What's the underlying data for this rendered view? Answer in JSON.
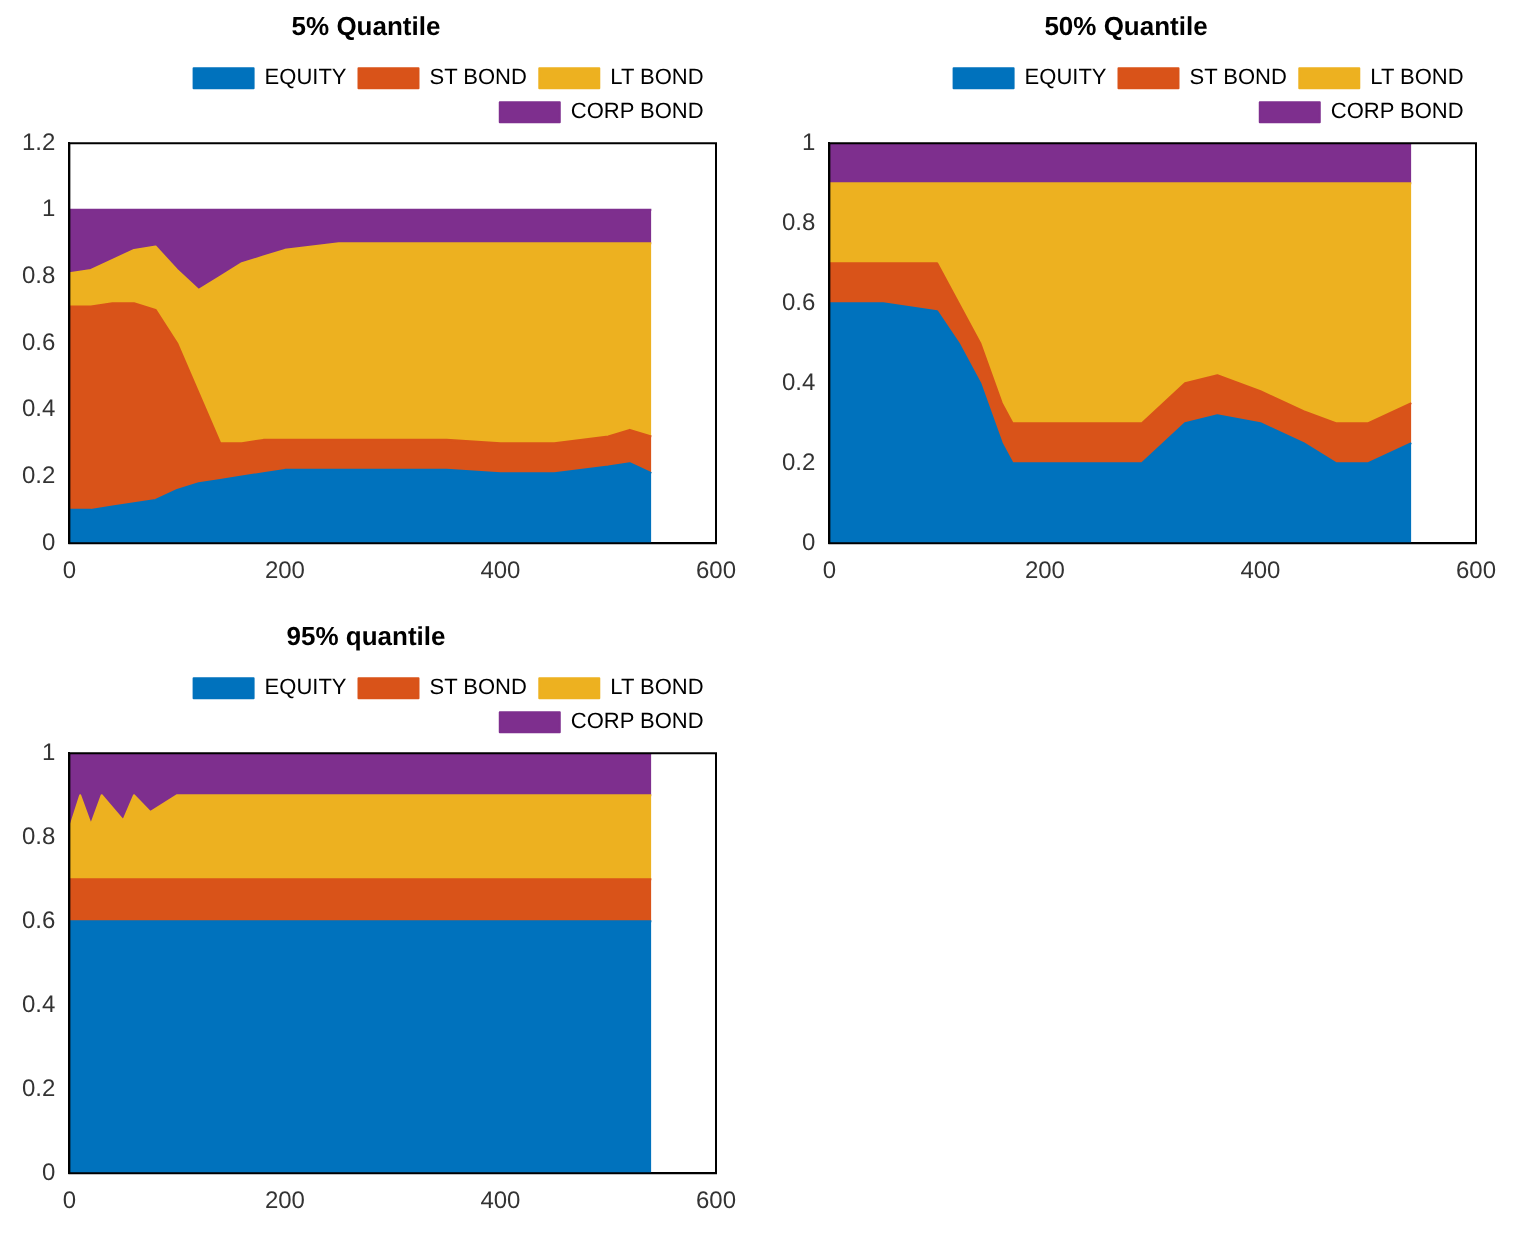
{
  "chart_data": [
    {
      "type": "area",
      "title": "5% Quantile",
      "stacked": true,
      "legend": "top",
      "grid": false,
      "x": [
        0,
        20,
        40,
        60,
        80,
        100,
        120,
        140,
        160,
        180,
        200,
        250,
        300,
        350,
        400,
        450,
        500,
        520,
        540
      ],
      "xlim": [
        0,
        600
      ],
      "xticks": [
        0,
        200,
        400,
        600
      ],
      "ylim": [
        0,
        1.2
      ],
      "yticks": [
        0,
        0.2,
        0.4,
        0.6,
        0.8,
        1,
        1.2
      ],
      "series": [
        {
          "name": "EQUITY",
          "color": "#0072bd",
          "values": [
            0.1,
            0.1,
            0.11,
            0.12,
            0.13,
            0.16,
            0.18,
            0.19,
            0.2,
            0.21,
            0.22,
            0.22,
            0.22,
            0.22,
            0.21,
            0.21,
            0.23,
            0.24,
            0.21
          ]
        },
        {
          "name": "ST BOND",
          "color": "#d95319",
          "values": [
            0.61,
            0.61,
            0.61,
            0.6,
            0.57,
            0.44,
            0.27,
            0.11,
            0.1,
            0.1,
            0.09,
            0.09,
            0.09,
            0.09,
            0.09,
            0.09,
            0.09,
            0.1,
            0.11
          ]
        },
        {
          "name": "LT BOND",
          "color": "#edb120",
          "values": [
            0.1,
            0.11,
            0.13,
            0.16,
            0.19,
            0.22,
            0.31,
            0.5,
            0.54,
            0.55,
            0.57,
            0.59,
            0.59,
            0.59,
            0.6,
            0.6,
            0.58,
            0.56,
            0.58
          ]
        },
        {
          "name": "CORP BOND",
          "color": "#7e2f8e",
          "values": [
            0.19,
            0.18,
            0.15,
            0.12,
            0.11,
            0.18,
            0.24,
            0.2,
            0.16,
            0.14,
            0.12,
            0.1,
            0.1,
            0.1,
            0.1,
            0.1,
            0.1,
            0.1,
            0.1
          ]
        }
      ]
    },
    {
      "type": "area",
      "title": "50% Quantile",
      "stacked": true,
      "legend": "top",
      "grid": false,
      "x": [
        0,
        50,
        100,
        120,
        140,
        160,
        170,
        200,
        250,
        290,
        310,
        330,
        360,
        400,
        440,
        470,
        500,
        540
      ],
      "xlim": [
        0,
        600
      ],
      "xticks": [
        0,
        200,
        400,
        600
      ],
      "ylim": [
        0,
        1
      ],
      "yticks": [
        0,
        0.2,
        0.4,
        0.6,
        0.8,
        1
      ],
      "series": [
        {
          "name": "EQUITY",
          "color": "#0072bd",
          "values": [
            0.6,
            0.6,
            0.58,
            0.5,
            0.4,
            0.25,
            0.2,
            0.2,
            0.2,
            0.2,
            0.25,
            0.3,
            0.32,
            0.3,
            0.25,
            0.2,
            0.2,
            0.25
          ]
        },
        {
          "name": "ST BOND",
          "color": "#d95319",
          "values": [
            0.1,
            0.1,
            0.12,
            0.1,
            0.1,
            0.1,
            0.1,
            0.1,
            0.1,
            0.1,
            0.1,
            0.1,
            0.1,
            0.08,
            0.08,
            0.1,
            0.1,
            0.1
          ]
        },
        {
          "name": "LT BOND",
          "color": "#edb120",
          "values": [
            0.2,
            0.2,
            0.2,
            0.3,
            0.4,
            0.55,
            0.6,
            0.6,
            0.6,
            0.6,
            0.55,
            0.5,
            0.48,
            0.52,
            0.57,
            0.6,
            0.6,
            0.55
          ]
        },
        {
          "name": "CORP BOND",
          "color": "#7e2f8e",
          "values": [
            0.1,
            0.1,
            0.1,
            0.1,
            0.1,
            0.1,
            0.1,
            0.1,
            0.1,
            0.1,
            0.1,
            0.1,
            0.1,
            0.1,
            0.1,
            0.1,
            0.1,
            0.1
          ]
        }
      ]
    },
    {
      "type": "area",
      "title": "95% quantile",
      "stacked": true,
      "legend": "top",
      "grid": false,
      "x": [
        0,
        10,
        20,
        30,
        50,
        60,
        75,
        100,
        540
      ],
      "xlim": [
        0,
        600
      ],
      "xticks": [
        0,
        200,
        400,
        600
      ],
      "ylim": [
        0,
        1
      ],
      "yticks": [
        0,
        0.2,
        0.4,
        0.6,
        0.8,
        1
      ],
      "series": [
        {
          "name": "EQUITY",
          "color": "#0072bd",
          "values": [
            0.6,
            0.6,
            0.6,
            0.6,
            0.6,
            0.6,
            0.6,
            0.6,
            0.6
          ]
        },
        {
          "name": "ST BOND",
          "color": "#d95319",
          "values": [
            0.1,
            0.1,
            0.1,
            0.1,
            0.1,
            0.1,
            0.1,
            0.1,
            0.1
          ]
        },
        {
          "name": "LT BOND",
          "color": "#edb120",
          "values": [
            0.12,
            0.2,
            0.13,
            0.2,
            0.14,
            0.2,
            0.16,
            0.2,
            0.2
          ]
        },
        {
          "name": "CORP BOND",
          "color": "#7e2f8e",
          "values": [
            0.18,
            0.1,
            0.17,
            0.1,
            0.16,
            0.1,
            0.14,
            0.1,
            0.1
          ]
        }
      ]
    }
  ]
}
